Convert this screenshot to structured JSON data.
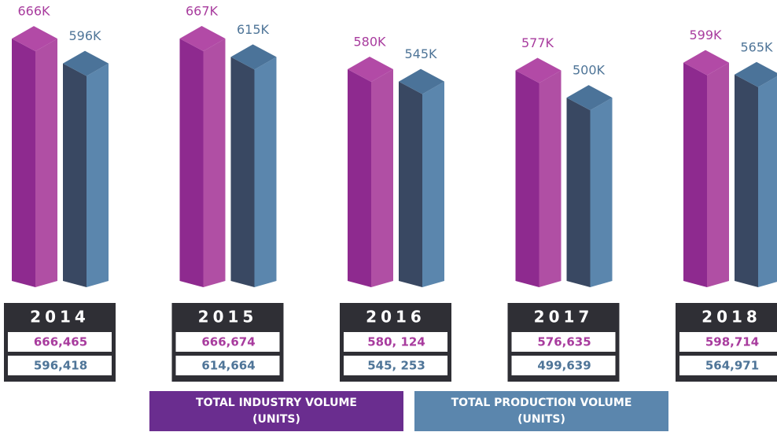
{
  "chart_data": {
    "type": "bar",
    "categories": [
      "2014",
      "2015",
      "2016",
      "2017",
      "2018"
    ],
    "series": [
      {
        "name": "TOTAL INDUSTRY VOLUME (UNITS)",
        "color": "#8e2a8f",
        "values": [
          666465,
          666674,
          580124,
          576635,
          598714
        ],
        "value_labels": [
          "666K",
          "667K",
          "580K",
          "577K",
          "599K"
        ],
        "detail_labels": [
          "666,465",
          "666,674",
          "580, 124",
          "576,635",
          "598,714"
        ]
      },
      {
        "name": "TOTAL PRODUCTION VOLUME (UNITS)",
        "color": "#5b86ad",
        "values": [
          596418,
          614664,
          545253,
          499639,
          564971
        ],
        "value_labels": [
          "596K",
          "615K",
          "545K",
          "500K",
          "565K"
        ],
        "detail_labels": [
          "596,418",
          "614,664",
          "545, 253",
          "499,639",
          "564,971"
        ]
      }
    ]
  }
}
